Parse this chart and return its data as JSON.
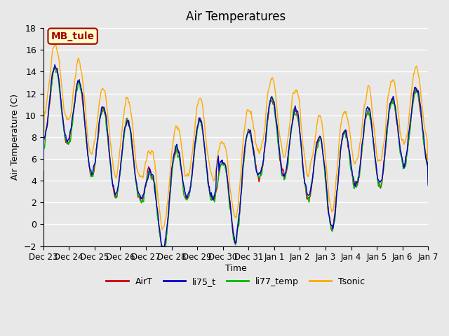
{
  "title": "Air Temperatures",
  "ylabel": "Air Temperature (C)",
  "xlabel": "Time",
  "annotation": "MB_tule",
  "ylim": [
    -2,
    18
  ],
  "yticks": [
    -2,
    0,
    2,
    4,
    6,
    8,
    10,
    12,
    14,
    16,
    18
  ],
  "xtick_labels": [
    "Dec 23",
    "Dec 24",
    "Dec 25",
    "Dec 26",
    "Dec 27",
    "Dec 28",
    "Dec 29",
    "Dec 30",
    "Dec 31",
    "Jan 1",
    "Jan 2",
    "Jan 3",
    "Jan 4",
    "Jan 5",
    "Jan 6",
    "Jan 7"
  ],
  "colors": {
    "AirT": "#cc0000",
    "li75_t": "#0000cc",
    "li77_temp": "#00bb00",
    "Tsonic": "#ffaa00"
  },
  "legend_labels": [
    "AirT",
    "li75_t",
    "li77_temp",
    "Tsonic"
  ],
  "bg_color": "#e8e8e8",
  "plot_bg_color": "#e8e8e8",
  "grid_color": "#ffffff",
  "annotation_bg": "#ffffcc",
  "annotation_border": "#aa0000"
}
